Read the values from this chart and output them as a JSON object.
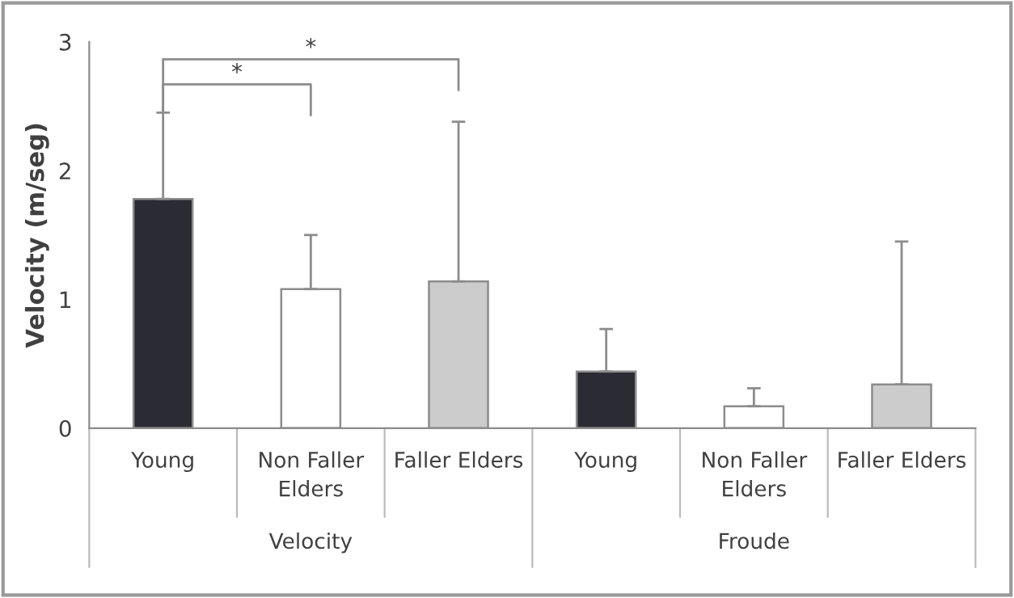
{
  "chart_data": {
    "type": "bar",
    "ylabel": "Velocity (m/seg)",
    "categories": [
      "Young",
      "Non Faller\nElders",
      "Faller Elders",
      "Young",
      "Non Faller\nElders",
      "Faller Elders"
    ],
    "values": [
      1.78,
      1.08,
      1.14,
      0.44,
      0.17,
      0.34
    ],
    "errors": [
      [
        1.78,
        2.45
      ],
      [
        1.08,
        1.5
      ],
      [
        1.14,
        2.38
      ],
      [
        0.44,
        0.77
      ],
      [
        0.17,
        0.31
      ],
      [
        0.34,
        1.45
      ]
    ],
    "colors": [
      "#2b2b33",
      "#ffffff",
      "#cccccc",
      "#2b2b33",
      "#ffffff",
      "#cccccc"
    ],
    "ylim": [
      0,
      3
    ],
    "yticks": [
      0,
      1,
      2,
      3
    ],
    "grid": false,
    "annotations": [
      "*",
      "*",
      "Velocity",
      "Froude"
    ]
  }
}
